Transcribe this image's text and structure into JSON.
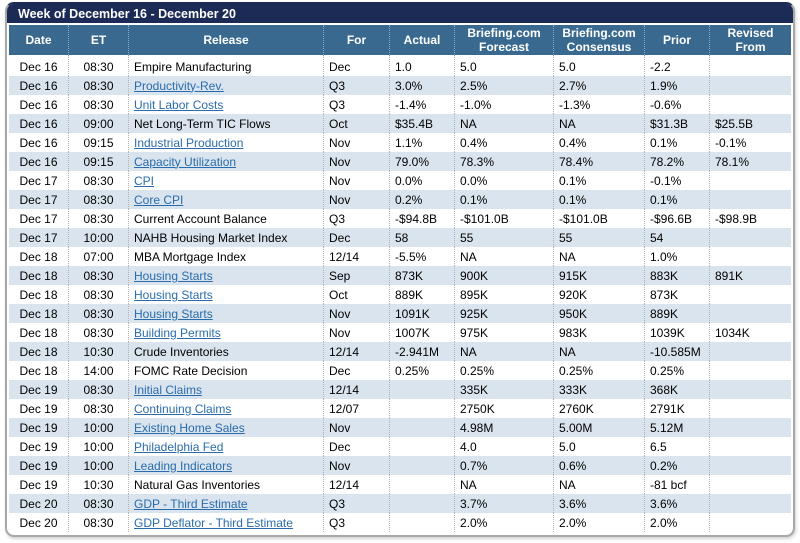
{
  "header": {
    "title": "Week of December 16 - December 20"
  },
  "table": {
    "columns": [
      "Date",
      "ET",
      "Release",
      "For",
      "Actual",
      "Briefing.com Forecast",
      "Briefing.com Consensus",
      "Prior",
      "Revised From"
    ],
    "rows": [
      {
        "date": "Dec 16",
        "et": "08:30",
        "release": "Empire Manufacturing",
        "link": false,
        "for": "Dec",
        "actual": "1.0",
        "forecast": "5.0",
        "consensus": "5.0",
        "prior": "-2.2",
        "revised": ""
      },
      {
        "date": "Dec 16",
        "et": "08:30",
        "release": "Productivity-Rev.",
        "link": true,
        "for": "Q3",
        "actual": "3.0%",
        "forecast": "2.5%",
        "consensus": "2.7%",
        "prior": "1.9%",
        "revised": ""
      },
      {
        "date": "Dec 16",
        "et": "08:30",
        "release": "Unit Labor Costs",
        "link": true,
        "for": "Q3",
        "actual": "-1.4%",
        "forecast": "-1.0%",
        "consensus": "-1.3%",
        "prior": "-0.6%",
        "revised": ""
      },
      {
        "date": "Dec 16",
        "et": "09:00",
        "release": "Net Long-Term TIC Flows",
        "link": false,
        "for": "Oct",
        "actual": "$35.4B",
        "forecast": "NA",
        "consensus": "NA",
        "prior": "$31.3B",
        "revised": "$25.5B"
      },
      {
        "date": "Dec 16",
        "et": "09:15",
        "release": "Industrial Production",
        "link": true,
        "for": "Nov",
        "actual": "1.1%",
        "forecast": "0.4%",
        "consensus": "0.4%",
        "prior": "0.1%",
        "revised": "-0.1%"
      },
      {
        "date": "Dec 16",
        "et": "09:15",
        "release": "Capacity Utilization",
        "link": true,
        "for": "Nov",
        "actual": "79.0%",
        "forecast": "78.3%",
        "consensus": "78.4%",
        "prior": "78.2%",
        "revised": "78.1%"
      },
      {
        "date": "Dec 17",
        "et": "08:30",
        "release": "CPI",
        "link": true,
        "for": "Nov",
        "actual": "0.0%",
        "forecast": "0.0%",
        "consensus": "0.1%",
        "prior": "-0.1%",
        "revised": ""
      },
      {
        "date": "Dec 17",
        "et": "08:30",
        "release": "Core CPI",
        "link": true,
        "for": "Nov",
        "actual": "0.2%",
        "forecast": "0.1%",
        "consensus": "0.1%",
        "prior": "0.1%",
        "revised": ""
      },
      {
        "date": "Dec 17",
        "et": "08:30",
        "release": "Current Account Balance",
        "link": false,
        "for": "Q3",
        "actual": "-$94.8B",
        "forecast": "-$101.0B",
        "consensus": "-$101.0B",
        "prior": "-$96.6B",
        "revised": "-$98.9B"
      },
      {
        "date": "Dec 17",
        "et": "10:00",
        "release": "NAHB Housing Market Index",
        "link": false,
        "for": "Dec",
        "actual": "58",
        "forecast": "55",
        "consensus": "55",
        "prior": "54",
        "revised": ""
      },
      {
        "date": "Dec 18",
        "et": "07:00",
        "release": "MBA Mortgage Index",
        "link": false,
        "for": "12/14",
        "actual": "-5.5%",
        "forecast": "NA",
        "consensus": "NA",
        "prior": "1.0%",
        "revised": ""
      },
      {
        "date": "Dec 18",
        "et": "08:30",
        "release": "Housing Starts",
        "link": true,
        "for": "Sep",
        "actual": "873K",
        "forecast": "900K",
        "consensus": "915K",
        "prior": "883K",
        "revised": "891K"
      },
      {
        "date": "Dec 18",
        "et": "08:30",
        "release": "Housing Starts",
        "link": true,
        "for": "Oct",
        "actual": "889K",
        "forecast": "895K",
        "consensus": "920K",
        "prior": "873K",
        "revised": ""
      },
      {
        "date": "Dec 18",
        "et": "08:30",
        "release": "Housing Starts",
        "link": true,
        "for": "Nov",
        "actual": "1091K",
        "forecast": "925K",
        "consensus": "950K",
        "prior": "889K",
        "revised": ""
      },
      {
        "date": "Dec 18",
        "et": "08:30",
        "release": "Building Permits",
        "link": true,
        "for": "Nov",
        "actual": "1007K",
        "forecast": "975K",
        "consensus": "983K",
        "prior": "1039K",
        "revised": "1034K"
      },
      {
        "date": "Dec 18",
        "et": "10:30",
        "release": "Crude Inventories",
        "link": false,
        "for": "12/14",
        "actual": "-2.941M",
        "forecast": "NA",
        "consensus": "NA",
        "prior": "-10.585M",
        "revised": ""
      },
      {
        "date": "Dec 18",
        "et": "14:00",
        "release": "FOMC Rate Decision",
        "link": false,
        "for": "Dec",
        "actual": "0.25%",
        "forecast": "0.25%",
        "consensus": "0.25%",
        "prior": "0.25%",
        "revised": ""
      },
      {
        "date": "Dec 19",
        "et": "08:30",
        "release": "Initial Claims",
        "link": true,
        "for": "12/14",
        "actual": "",
        "forecast": "335K",
        "consensus": "333K",
        "prior": "368K",
        "revised": ""
      },
      {
        "date": "Dec 19",
        "et": "08:30",
        "release": "Continuing Claims",
        "link": true,
        "for": "12/07",
        "actual": "",
        "forecast": "2750K",
        "consensus": "2760K",
        "prior": "2791K",
        "revised": ""
      },
      {
        "date": "Dec 19",
        "et": "10:00",
        "release": "Existing Home Sales",
        "link": true,
        "for": "Nov",
        "actual": "",
        "forecast": "4.98M",
        "consensus": "5.00M",
        "prior": "5.12M",
        "revised": ""
      },
      {
        "date": "Dec 19",
        "et": "10:00",
        "release": "Philadelphia Fed",
        "link": true,
        "for": "Dec",
        "actual": "",
        "forecast": "4.0",
        "consensus": "5.0",
        "prior": "6.5",
        "revised": ""
      },
      {
        "date": "Dec 19",
        "et": "10:00",
        "release": "Leading Indicators",
        "link": true,
        "for": "Nov",
        "actual": "",
        "forecast": "0.7%",
        "consensus": "0.6%",
        "prior": "0.2%",
        "revised": ""
      },
      {
        "date": "Dec 19",
        "et": "10:30",
        "release": "Natural Gas Inventories",
        "link": false,
        "for": "12/14",
        "actual": "",
        "forecast": "NA",
        "consensus": "NA",
        "prior": "-81 bcf",
        "revised": ""
      },
      {
        "date": "Dec 20",
        "et": "08:30",
        "release": "GDP - Third Estimate",
        "link": true,
        "for": "Q3",
        "actual": "",
        "forecast": "3.7%",
        "consensus": "3.6%",
        "prior": "3.6%",
        "revised": ""
      },
      {
        "date": "Dec 20",
        "et": "08:30",
        "release": "GDP Deflator - Third Estimate",
        "link": true,
        "for": "Q3",
        "actual": "",
        "forecast": "2.0%",
        "consensus": "2.0%",
        "prior": "2.0%",
        "revised": ""
      }
    ]
  },
  "colors": {
    "title_bar": "#1C2B55",
    "header_bg": "#39698F",
    "row_alt": "#D9E4EE",
    "link": "#2A6CAB"
  }
}
